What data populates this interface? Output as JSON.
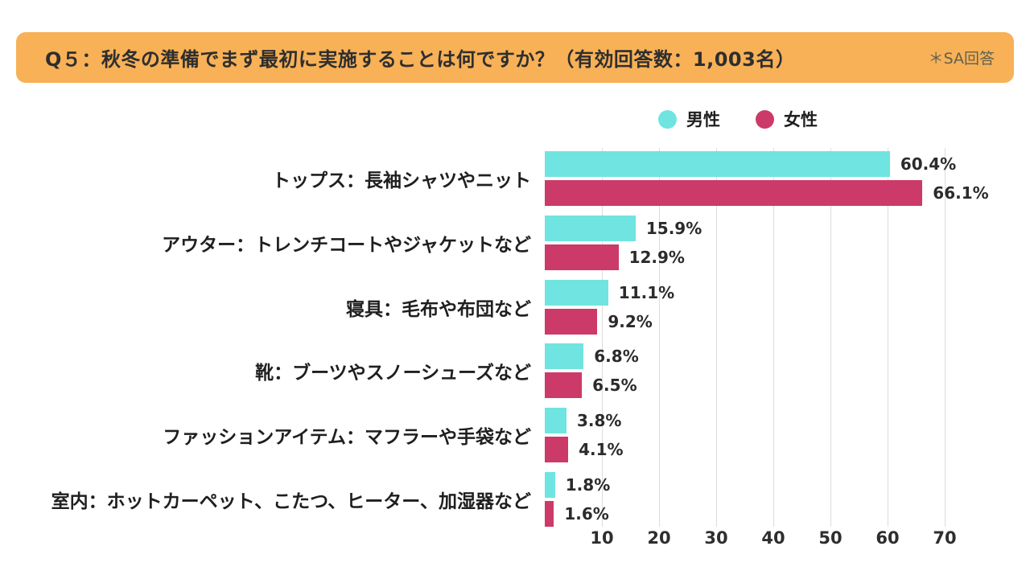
{
  "header": {
    "title": "Q５：秋冬の準備でまず最初に実施することは何ですか？（有効回答数：1,003名）",
    "note": "＊SA回答",
    "bg_color": "#F8B157"
  },
  "legend": {
    "items": [
      {
        "label": "男性",
        "color": "#6FE4E1"
      },
      {
        "label": "女性",
        "color": "#CB3A68"
      }
    ]
  },
  "chart_data": {
    "type": "bar",
    "orientation": "horizontal",
    "title": "",
    "xlabel": "",
    "ylabel": "",
    "categories": [
      "トップス：長袖シャツやニット",
      "アウター：トレンチコートやジャケットなど",
      "寝具：毛布や布団など",
      "靴：ブーツやスノーシューズなど",
      "ファッションアイテム：マフラーや手袋など",
      "室内：ホットカーペット、こたつ、ヒーター、加湿器など"
    ],
    "series": [
      {
        "name": "男性",
        "color": "#6FE4E1",
        "values": [
          60.4,
          15.9,
          11.1,
          6.8,
          3.8,
          1.8
        ]
      },
      {
        "name": "女性",
        "color": "#CB3A68",
        "values": [
          66.1,
          12.9,
          9.2,
          6.5,
          4.1,
          1.6
        ]
      }
    ],
    "value_suffix": "%",
    "xlim": [
      0,
      75
    ],
    "xticks": [
      10,
      20,
      30,
      40,
      50,
      60,
      70
    ],
    "grid": true,
    "legend_position": "top"
  }
}
